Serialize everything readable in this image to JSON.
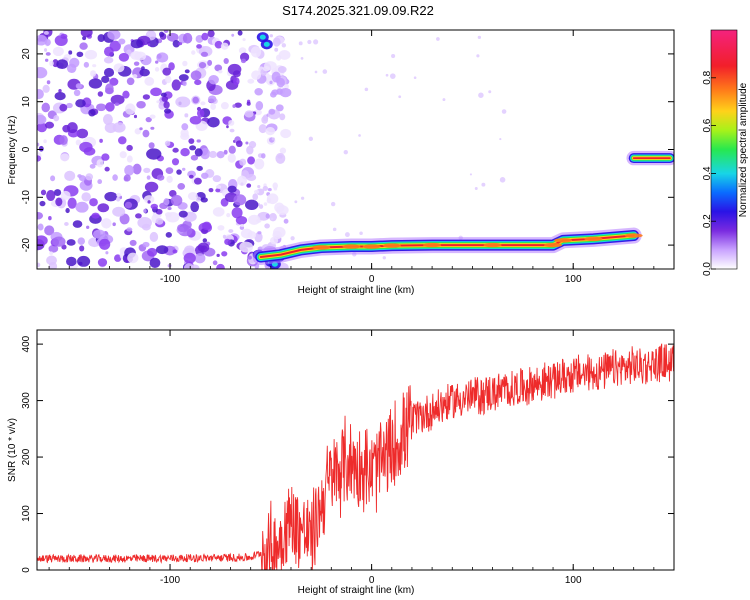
{
  "title": "S174.2025.321.09.09.R22",
  "colors": {
    "signal": "#ee2b2b",
    "noise": "#8a3cf0",
    "colormap": [
      "#ffffff",
      "#e9d7ff",
      "#b47cff",
      "#7a2be0",
      "#2a13e6",
      "#0a6cff",
      "#18e0e0",
      "#27e84f",
      "#c8f21a",
      "#ffd21a",
      "#ff7a1a",
      "#f21f2a",
      "#f4227e"
    ]
  },
  "chart_data": [
    {
      "type": "heatmap",
      "name": "spectrogram",
      "xlabel": "Height of straight line (km)",
      "ylabel": "Frequency (Hz)",
      "xlim": [
        -166,
        150
      ],
      "ylim": [
        -25,
        25
      ],
      "xticks": [
        -100,
        0,
        100
      ],
      "yticks": [
        -20,
        -10,
        0,
        10,
        20
      ],
      "colorbar": {
        "label": "Normalized spectral amplitude",
        "range": [
          0,
          1
        ],
        "ticks": [
          "0.0",
          "0.2",
          "0.4",
          "0.6",
          "0.8"
        ]
      },
      "noise_region_x": [
        -166,
        -50
      ],
      "noise_top_x_end": -40,
      "tone_track": [
        {
          "x": -55,
          "y": -22.5
        },
        {
          "x": -45,
          "y": -22
        },
        {
          "x": -35,
          "y": -21
        },
        {
          "x": -25,
          "y": -20.5
        },
        {
          "x": -10,
          "y": -20.3
        },
        {
          "x": 0,
          "y": -20.3
        },
        {
          "x": 10,
          "y": -20.1
        },
        {
          "x": 30,
          "y": -20
        },
        {
          "x": 60,
          "y": -20
        },
        {
          "x": 90,
          "y": -20
        },
        {
          "x": 95,
          "y": -19
        },
        {
          "x": 110,
          "y": -18.7
        },
        {
          "x": 130,
          "y": -18
        }
      ],
      "tone_segment_2": {
        "x": [
          130,
          150
        ],
        "y": -1.8
      }
    },
    {
      "type": "line",
      "name": "snr",
      "xlabel": "Height of straight line (km)",
      "ylabel": "SNR (10 * v/v)",
      "xlim": [
        -166,
        150
      ],
      "ylim": [
        0,
        425
      ],
      "xticks": [
        -100,
        0,
        100
      ],
      "yticks": [
        0,
        100,
        200,
        300,
        400
      ],
      "trend": [
        {
          "x": -166,
          "y": 18
        },
        {
          "x": -120,
          "y": 18
        },
        {
          "x": -60,
          "y": 20
        },
        {
          "x": -48,
          "y": 40
        },
        {
          "x": -40,
          "y": 90
        },
        {
          "x": -30,
          "y": 55
        },
        {
          "x": -22,
          "y": 150
        },
        {
          "x": -12,
          "y": 195
        },
        {
          "x": 0,
          "y": 170
        },
        {
          "x": 10,
          "y": 210
        },
        {
          "x": 20,
          "y": 265
        },
        {
          "x": 40,
          "y": 300
        },
        {
          "x": 70,
          "y": 320
        },
        {
          "x": 100,
          "y": 345
        },
        {
          "x": 120,
          "y": 355
        },
        {
          "x": 150,
          "y": 370
        }
      ]
    }
  ]
}
